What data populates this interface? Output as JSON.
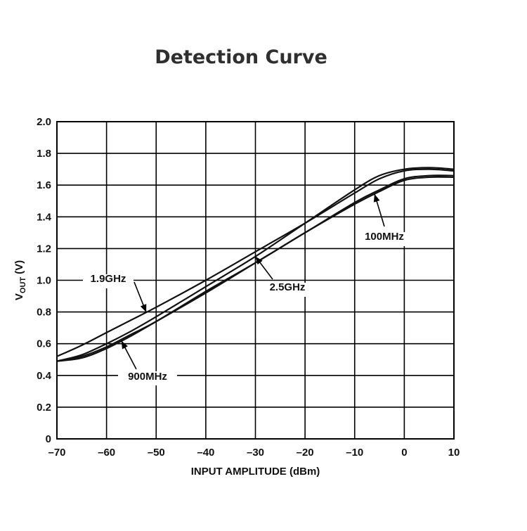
{
  "chart_data": {
    "type": "line",
    "title": "Detection Curve",
    "xlabel": "INPUT AMPLITUDE (dBm)",
    "ylabel_main": "V",
    "ylabel_sub": "OUT",
    "ylabel_unit": "(V)",
    "xlim": [
      -70,
      10
    ],
    "ylim": [
      0,
      2.0
    ],
    "grid": true,
    "x_ticks": [
      "–70",
      "–60",
      "–50",
      "–40",
      "–30",
      "–20",
      "–10",
      "0",
      "10"
    ],
    "y_ticks": [
      "0",
      "0.2",
      "0.4",
      "0.6",
      "0.8",
      "1.0",
      "1.2",
      "1.4",
      "1.6",
      "1.8",
      "2.0"
    ],
    "series": [
      {
        "name": "100MHz",
        "x": [
          -70,
          -65,
          -60,
          -55,
          -50,
          -40,
          -30,
          -20,
          -10,
          -5,
          0,
          5,
          10
        ],
        "y": [
          0.49,
          0.52,
          0.58,
          0.66,
          0.74,
          0.93,
          1.11,
          1.3,
          1.48,
          1.56,
          1.63,
          1.65,
          1.65
        ]
      },
      {
        "name": "900MHz",
        "x": [
          -70,
          -65,
          -60,
          -55,
          -50,
          -40,
          -30,
          -20,
          -10,
          -5,
          0,
          5,
          10
        ],
        "y": [
          0.49,
          0.51,
          0.57,
          0.65,
          0.74,
          0.92,
          1.11,
          1.3,
          1.49,
          1.57,
          1.64,
          1.66,
          1.66
        ]
      },
      {
        "name": "1.9GHz",
        "x": [
          -70,
          -65,
          -60,
          -55,
          -50,
          -40,
          -30,
          -20,
          -10,
          -5,
          0,
          5,
          10
        ],
        "y": [
          0.52,
          0.59,
          0.67,
          0.75,
          0.83,
          1.0,
          1.18,
          1.36,
          1.55,
          1.64,
          1.69,
          1.7,
          1.69
        ]
      },
      {
        "name": "2.5GHz",
        "x": [
          -70,
          -65,
          -60,
          -55,
          -50,
          -40,
          -30,
          -20,
          -10,
          -5,
          0,
          5,
          10
        ],
        "y": [
          0.49,
          0.53,
          0.6,
          0.68,
          0.77,
          0.96,
          1.15,
          1.36,
          1.57,
          1.66,
          1.7,
          1.71,
          1.7
        ]
      }
    ],
    "annotations": [
      {
        "text": "1.9GHz",
        "series": "1.9GHz"
      },
      {
        "text": "2.5GHz",
        "series": "2.5GHz"
      },
      {
        "text": "100MHz",
        "series": "100MHz"
      },
      {
        "text": "900MHz",
        "series": "900MHz"
      }
    ]
  }
}
